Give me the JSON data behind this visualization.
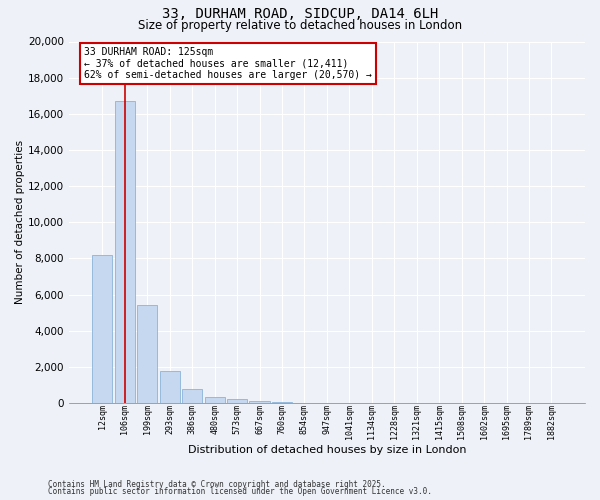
{
  "title_line1": "33, DURHAM ROAD, SIDCUP, DA14 6LH",
  "title_line2": "Size of property relative to detached houses in London",
  "xlabel": "Distribution of detached houses by size in London",
  "ylabel": "Number of detached properties",
  "categories": [
    "12sqm",
    "106sqm",
    "199sqm",
    "293sqm",
    "386sqm",
    "480sqm",
    "573sqm",
    "667sqm",
    "760sqm",
    "854sqm",
    "947sqm",
    "1041sqm",
    "1134sqm",
    "1228sqm",
    "1321sqm",
    "1415sqm",
    "1508sqm",
    "1602sqm",
    "1695sqm",
    "1789sqm",
    "1882sqm"
  ],
  "values": [
    8200,
    16700,
    5400,
    1800,
    750,
    320,
    200,
    130,
    60,
    0,
    0,
    0,
    0,
    0,
    0,
    0,
    0,
    0,
    0,
    0,
    0
  ],
  "bar_color": "#c5d8f0",
  "bar_edge_color": "#7baad4",
  "property_line_x": 1.0,
  "annotation_text": "33 DURHAM ROAD: 125sqm\n← 37% of detached houses are smaller (12,411)\n62% of semi-detached houses are larger (20,570) →",
  "annotation_box_color": "#ffffff",
  "annotation_box_edge_color": "#cc0000",
  "vline_color": "#cc0000",
  "ylim": [
    0,
    20000
  ],
  "yticks": [
    0,
    2000,
    4000,
    6000,
    8000,
    10000,
    12000,
    14000,
    16000,
    18000,
    20000
  ],
  "background_color": "#eef2f8",
  "footer_line1": "Contains HM Land Registry data © Crown copyright and database right 2025.",
  "footer_line2": "Contains public sector information licensed under the Open Government Licence v3.0."
}
